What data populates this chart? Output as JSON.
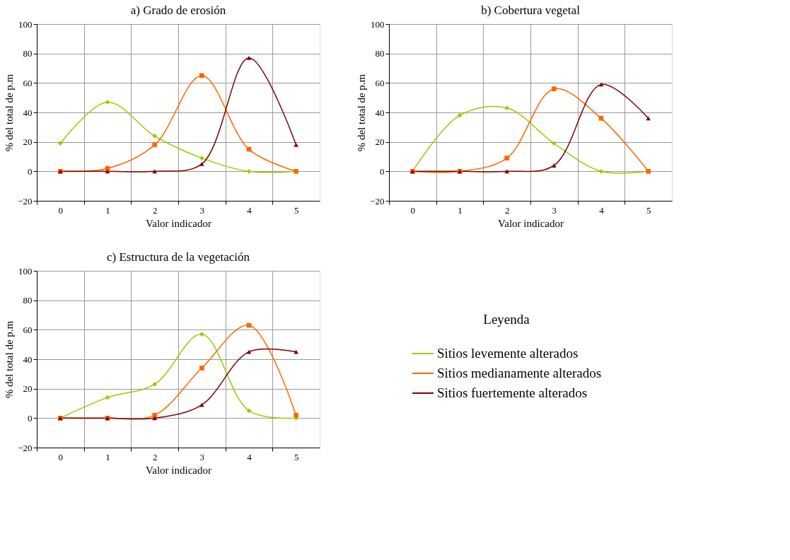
{
  "chart_data": [
    {
      "type": "line",
      "title": "a) Grado de erosión",
      "xlabel": "Valor indicador",
      "ylabel": "% del total de p.m",
      "categories": [
        "0",
        "1",
        "2",
        "3",
        "4",
        "5"
      ],
      "ylim": [
        -20,
        100
      ],
      "yticks": [
        -20,
        0,
        20,
        40,
        60,
        80,
        100
      ],
      "grid": true,
      "series": [
        {
          "color": "#99cc00",
          "marker": "diamond",
          "values": [
            19,
            47,
            24,
            9,
            0,
            0
          ]
        },
        {
          "color": "#ff6600",
          "marker": "square",
          "values": [
            0,
            2,
            18,
            65,
            15,
            0
          ]
        },
        {
          "color": "#800000",
          "marker": "triangle",
          "values": [
            0,
            0,
            0,
            5,
            77,
            18
          ]
        }
      ]
    },
    {
      "type": "line",
      "title": "b) Cobertura vegetal",
      "xlabel": "Valor indicador",
      "ylabel": "% del total de p.m",
      "categories": [
        "0",
        "1",
        "2",
        "3",
        "4",
        "5"
      ],
      "ylim": [
        -20,
        100
      ],
      "yticks": [
        -20,
        0,
        20,
        40,
        60,
        80,
        100
      ],
      "grid": true,
      "series": [
        {
          "color": "#99cc00",
          "marker": "diamond",
          "values": [
            0,
            38,
            43,
            19,
            0,
            0
          ]
        },
        {
          "color": "#ff6600",
          "marker": "square",
          "values": [
            0,
            0,
            9,
            56,
            36,
            0
          ]
        },
        {
          "color": "#800000",
          "marker": "triangle",
          "values": [
            0,
            0,
            0,
            4,
            59,
            36
          ]
        }
      ]
    },
    {
      "type": "line",
      "title": "c) Estructura de la vegetación",
      "xlabel": "Valor indicador",
      "ylabel": "% del total de p.m",
      "categories": [
        "0",
        "1",
        "2",
        "3",
        "4",
        "5"
      ],
      "ylim": [
        -20,
        100
      ],
      "yticks": [
        -20,
        0,
        20,
        40,
        60,
        80,
        100
      ],
      "grid": true,
      "legend": "right",
      "legend_title": "Leyenda",
      "series": [
        {
          "name": "Sitios levemente alterados",
          "color": "#99cc00",
          "marker": "diamond",
          "values": [
            0,
            14,
            23,
            57,
            5,
            0
          ]
        },
        {
          "name": "Sitios medianamente alterados",
          "color": "#ff6600",
          "marker": "square",
          "values": [
            0,
            0,
            2,
            34,
            63,
            2
          ]
        },
        {
          "name": "Sitios fuertemente alterados",
          "color": "#800000",
          "marker": "triangle",
          "values": [
            0,
            0,
            0,
            9,
            45,
            45
          ]
        }
      ]
    }
  ]
}
